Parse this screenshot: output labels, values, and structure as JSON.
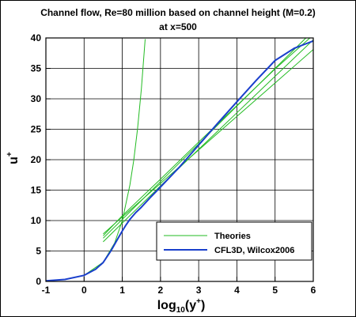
{
  "chart_data": {
    "type": "line",
    "title": "Channel flow, Re=80 million based on channel height (M=0.2)",
    "subtitle": "at x=500",
    "xlabel": {
      "base": "log",
      "sub": "10",
      "rest": "(y",
      "sup": "+",
      "close": ")"
    },
    "ylabel": {
      "base": "u",
      "sup": "+"
    },
    "xlim": [
      -1,
      6
    ],
    "ylim": [
      0,
      40
    ],
    "xticks": [
      "-1",
      "0",
      "1",
      "2",
      "3",
      "4",
      "5",
      "6"
    ],
    "yticks": [
      "0",
      "5",
      "10",
      "15",
      "20",
      "25",
      "30",
      "35",
      "40"
    ],
    "grid": true,
    "legend": {
      "placement": "bottom-right",
      "entries": [
        {
          "label": "Theories",
          "color": "#22bb22"
        },
        {
          "label": "CFL3D, Wilcox2006",
          "color": "#1a3fcc"
        }
      ]
    },
    "series": [
      {
        "name": "Theories",
        "color": "#22bb22",
        "curves": [
          {
            "x": [
              0.0,
              0.5,
              0.8,
              1.0,
              1.2,
              1.3,
              1.4,
              1.5,
              1.6
            ],
            "y": [
              1.0,
              3.16,
              6.31,
              10.0,
              15.85,
              19.95,
              25.12,
              31.62,
              39.81
            ]
          },
          {
            "x": [
              0.5,
              1.0,
              2.0,
              3.0,
              4.0,
              5.0,
              6.0
            ],
            "y": [
              7.1,
              10.2,
              16.4,
              22.6,
              28.8,
              35.0,
              41.2
            ]
          },
          {
            "x": [
              0.5,
              1.0,
              2.0,
              3.0,
              4.0,
              5.0,
              6.0
            ],
            "y": [
              6.5,
              9.6,
              15.7,
              21.7,
              27.7,
              33.7,
              39.7
            ]
          },
          {
            "x": [
              0.5,
              1.0,
              2.0,
              3.0,
              4.0,
              5.0,
              6.0
            ],
            "y": [
              7.8,
              10.6,
              16.1,
              21.6,
              27.1,
              32.6,
              38.1
            ]
          },
          {
            "x": [
              0.5,
              1.0,
              2.0,
              3.0,
              4.0,
              5.0,
              6.0
            ],
            "y": [
              7.5,
              10.8,
              16.8,
              22.9,
              28.9,
              34.9,
              40.5
            ]
          }
        ]
      },
      {
        "name": "CFL3D, Wilcox2006",
        "color": "#1a3fcc",
        "x": [
          -1.0,
          -0.5,
          0.0,
          0.3,
          0.5,
          0.7,
          0.9,
          1.0,
          1.1,
          1.2,
          1.35,
          1.5,
          1.75,
          2.0,
          2.5,
          3.0,
          3.5,
          4.0,
          4.5,
          5.0,
          5.5,
          6.0
        ],
        "y": [
          0.1,
          0.32,
          1.0,
          2.0,
          3.1,
          5.0,
          7.2,
          8.3,
          9.3,
          10.2,
          11.3,
          12.2,
          13.9,
          15.5,
          18.8,
          22.4,
          26.0,
          29.5,
          33.0,
          36.3,
          38.3,
          39.5
        ]
      }
    ]
  }
}
